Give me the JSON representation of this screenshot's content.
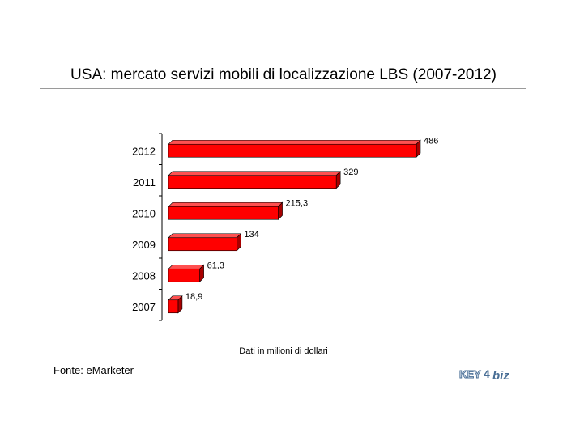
{
  "title": "USA: mercato servizi mobili di localizzazione LBS (2007-2012)",
  "note": "Dati in milioni di dollari",
  "source": "Fonte: eMarketer",
  "logo": {
    "text_left": "KEY",
    "text_num": "4",
    "text_right": "biz"
  },
  "colors": {
    "bar_front": "#ff0000",
    "bar_top": "#ff5050",
    "bar_side": "#a80000",
    "bar_edge": "#000000"
  },
  "chart_data": {
    "type": "bar",
    "orientation": "horizontal",
    "effect": "3d",
    "categories": [
      "2012",
      "2011",
      "2010",
      "2009",
      "2008",
      "2007"
    ],
    "values": [
      486,
      329,
      215.3,
      134,
      61.3,
      18.9
    ],
    "value_labels": [
      "486",
      "329",
      "215,3",
      "134",
      "61,3",
      "18,9"
    ],
    "xlim": [
      0,
      500
    ],
    "grid": false,
    "legend": "none"
  }
}
